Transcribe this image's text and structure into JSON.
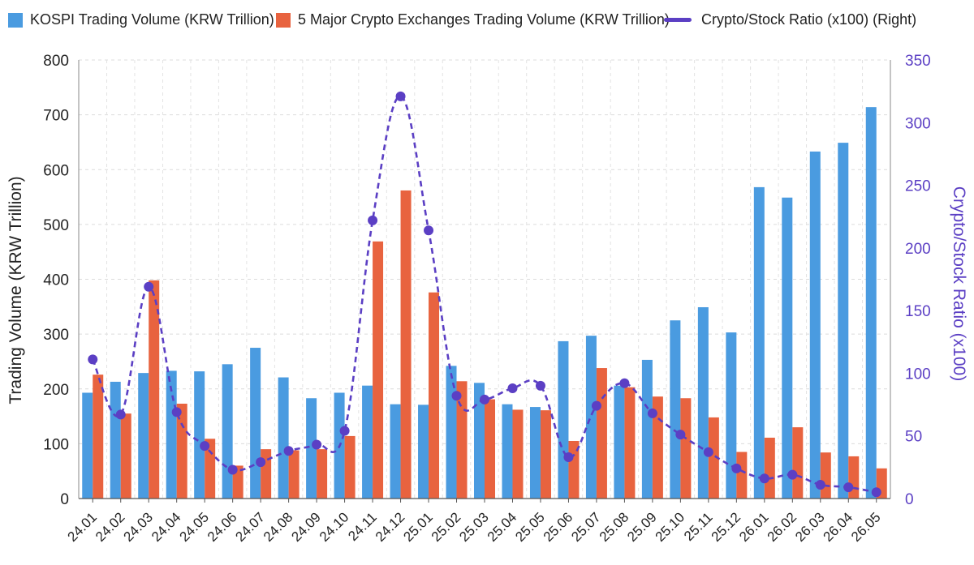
{
  "chart_data": {
    "type": "bar",
    "categories": [
      "24.01",
      "24.02",
      "24.03",
      "24.04",
      "24.05",
      "24.06",
      "24.07",
      "24.08",
      "24.09",
      "24.10",
      "24.11",
      "24.12",
      "25.01",
      "25.02",
      "25.03",
      "25.04",
      "25.05",
      "25.06",
      "25.07",
      "25.08",
      "25.09",
      "25.10",
      "25.11",
      "25.12",
      "26.01",
      "26.02",
      "26.03",
      "26.04",
      "26.05"
    ],
    "series": [
      {
        "name": "KOSPI Trading Volume (KRW Trillion)",
        "type": "bar",
        "axis": "left",
        "color": "#4a9be0",
        "values": [
          193,
          213,
          229,
          233,
          232,
          245,
          275,
          221,
          183,
          193,
          206,
          172,
          171,
          242,
          211,
          172,
          167,
          287,
          297,
          206,
          253,
          325,
          349,
          303,
          568,
          549,
          633,
          649,
          714
        ]
      },
      {
        "name": "5 Major Crypto Exchanges Trading Volume (KRW Trillion)",
        "type": "bar",
        "axis": "left",
        "color": "#e8633f",
        "values": [
          226,
          155,
          398,
          173,
          109,
          60,
          90,
          88,
          90,
          114,
          469,
          562,
          376,
          214,
          181,
          162,
          161,
          105,
          238,
          203,
          186,
          183,
          148,
          85,
          111,
          130,
          84,
          77,
          55
        ]
      },
      {
        "name": "Crypto/Stock Ratio (x100) (Right)",
        "type": "line",
        "axis": "right",
        "color": "#5b3fc4",
        "style": "dashed",
        "values": [
          111,
          67,
          169,
          69,
          42,
          23,
          29,
          38,
          43,
          54,
          222,
          321,
          214,
          82,
          79,
          88,
          90,
          33,
          74,
          92,
          68,
          51,
          37,
          24,
          16,
          19,
          11,
          9,
          5
        ]
      }
    ],
    "ylabel": "Trading Volume (KRW Trillion)",
    "y2label": "Crypto/Stock Ratio (x100)",
    "ylim": [
      0,
      800
    ],
    "y2lim": [
      0,
      350
    ],
    "yticks": [
      0,
      100,
      200,
      300,
      400,
      500,
      600,
      700,
      800
    ],
    "y2ticks": [
      0,
      50,
      100,
      150,
      200,
      250,
      300,
      350
    ],
    "grid": true,
    "legend": "top"
  },
  "legend": {
    "kospi_label": "KOSPI Trading Volume (KRW Trillion)",
    "crypto_label": "5 Major Crypto Exchanges Trading Volume (KRW Trillion)",
    "ratio_label": "Crypto/Stock Ratio (x100) (Right)"
  }
}
